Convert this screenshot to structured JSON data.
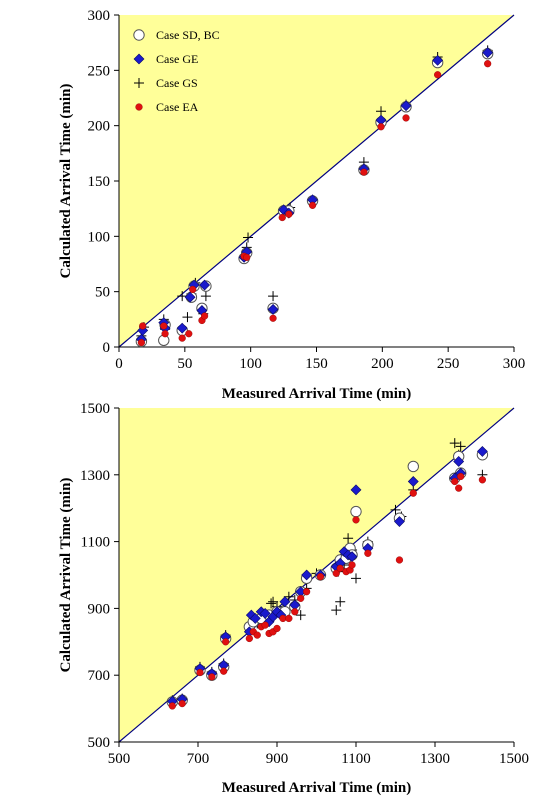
{
  "colors": {
    "plot_background": "#ffffff",
    "upper_triangle_fill": "#ffff99",
    "diagonal_line": "#000080",
    "sd_bc_marker": "#ffffff",
    "ge_marker": "#1a1acc",
    "gs_marker": "#000000",
    "ea_marker": "#e01010"
  },
  "chart_data": [
    {
      "type": "scatter",
      "xlabel": "Measured Arrival Time (min)",
      "ylabel": "Calculated Arrival Time (min)",
      "xlim": [
        0,
        300
      ],
      "ylim": [
        0,
        300
      ],
      "xticks": [
        0,
        50,
        100,
        150,
        200,
        250,
        300
      ],
      "yticks": [
        0,
        50,
        100,
        150,
        200,
        250,
        300
      ],
      "xtick_labels": [
        "0",
        "50",
        "100",
        "150",
        "200",
        "250",
        "300"
      ],
      "ytick_labels": [
        "0",
        "50",
        "100",
        "150",
        "200",
        "250",
        "300"
      ],
      "grid": false,
      "legend_position": "top-left",
      "series": [
        {
          "name": "Case SD, BC",
          "marker": "circle-open",
          "x": [
            17,
            34,
            35,
            48,
            55,
            57,
            63,
            66,
            95,
            97,
            117,
            125,
            129,
            147,
            186,
            199,
            218,
            242,
            280
          ],
          "y": [
            5,
            6,
            20,
            15,
            45,
            55,
            35,
            55,
            80,
            85,
            35,
            123,
            123,
            132,
            160,
            203,
            217,
            257,
            265
          ]
        },
        {
          "name": "Case GE",
          "marker": "diamond",
          "x": [
            17,
            18,
            34,
            35,
            48,
            54,
            57,
            63,
            65,
            95,
            97,
            117,
            125,
            129,
            147,
            186,
            199,
            218,
            242,
            280
          ],
          "y": [
            7,
            15,
            22,
            17,
            17,
            45,
            56,
            33,
            56,
            81,
            86,
            34,
            124,
            121,
            133,
            161,
            205,
            218,
            259,
            266
          ]
        },
        {
          "name": "Case GS",
          "marker": "plus",
          "x": [
            17,
            19,
            34,
            35,
            48,
            52,
            55,
            58,
            64,
            66,
            97,
            98,
            117,
            128,
            130,
            147,
            186,
            199,
            218,
            242,
            280
          ],
          "y": [
            10,
            18,
            25,
            16,
            46,
            27,
            48,
            58,
            30,
            46,
            90,
            99,
            46,
            124,
            126,
            133,
            167,
            213,
            219,
            262,
            268
          ]
        },
        {
          "name": "Case EA",
          "marker": "circle-filled",
          "x": [
            17,
            18,
            34,
            35,
            48,
            53,
            56,
            63,
            65,
            95,
            97,
            117,
            124,
            129,
            147,
            186,
            199,
            218,
            242,
            280
          ],
          "y": [
            4,
            19,
            19,
            12,
            8,
            12,
            52,
            24,
            28,
            82,
            81,
            26,
            117,
            120,
            128,
            158,
            199,
            207,
            246,
            256
          ]
        }
      ]
    },
    {
      "type": "scatter",
      "xlabel": "Measured Arrival Time (min)",
      "ylabel": "Calculated Arrival Time (min)",
      "xlim": [
        500,
        1500
      ],
      "ylim": [
        500,
        1500
      ],
      "xticks": [
        500,
        700,
        900,
        1100,
        1300,
        1500
      ],
      "yticks": [
        500,
        700,
        900,
        1100,
        1300,
        1500
      ],
      "xtick_labels": [
        "500",
        "700",
        "900",
        "1100",
        "1300",
        "1500"
      ],
      "ytick_labels": [
        "500",
        "700",
        "900",
        "1100",
        "1300",
        "1500"
      ],
      "grid": false,
      "legend_position": "none",
      "series": [
        {
          "name": "Case SD, BC",
          "marker": "circle-open",
          "x": [
            635,
            660,
            705,
            735,
            765,
            770,
            830,
            840,
            860,
            880,
            900,
            920,
            945,
            960,
            975,
            1010,
            1050,
            1060,
            1075,
            1085,
            1090,
            1100,
            1130,
            1210,
            1245,
            1350,
            1360,
            1365,
            1420
          ],
          "y": [
            620,
            625,
            715,
            700,
            725,
            810,
            845,
            860,
            870,
            880,
            890,
            890,
            905,
            950,
            990,
            1000,
            1020,
            1045,
            1050,
            1080,
            1060,
            1190,
            1090,
            1170,
            1325,
            1290,
            1355,
            1305,
            1360
          ]
        },
        {
          "name": "Case GE",
          "marker": "diamond",
          "x": [
            635,
            660,
            705,
            735,
            765,
            770,
            830,
            835,
            845,
            860,
            870,
            880,
            890,
            900,
            910,
            920,
            945,
            960,
            975,
            1010,
            1050,
            1060,
            1070,
            1080,
            1090,
            1100,
            1130,
            1210,
            1245,
            1350,
            1360,
            1365,
            1420
          ],
          "y": [
            622,
            628,
            720,
            705,
            730,
            815,
            830,
            880,
            870,
            890,
            885,
            860,
            875,
            890,
            880,
            920,
            910,
            950,
            1000,
            1000,
            1025,
            1035,
            1070,
            1060,
            1055,
            1255,
            1080,
            1160,
            1280,
            1290,
            1340,
            1305,
            1370
          ]
        },
        {
          "name": "Case GS",
          "marker": "plus",
          "x": [
            635,
            660,
            705,
            735,
            765,
            770,
            830,
            850,
            870,
            885,
            890,
            900,
            915,
            930,
            945,
            960,
            975,
            1000,
            1050,
            1055,
            1060,
            1070,
            1080,
            1090,
            1100,
            1130,
            1200,
            1215,
            1245,
            1350,
            1355,
            1360,
            1365,
            1420
          ],
          "y": [
            625,
            630,
            725,
            710,
            735,
            820,
            850,
            855,
            880,
            915,
            920,
            905,
            900,
            935,
            925,
            880,
            960,
            1005,
            895,
            1010,
            920,
            1030,
            1110,
            1075,
            990,
            1100,
            1195,
            1175,
            1255,
            1395,
            1290,
            1360,
            1385,
            1300
          ]
        },
        {
          "name": "Case EA",
          "marker": "circle-filled",
          "x": [
            635,
            660,
            705,
            735,
            765,
            770,
            830,
            840,
            850,
            860,
            870,
            880,
            890,
            900,
            915,
            930,
            945,
            960,
            975,
            1010,
            1050,
            1060,
            1075,
            1085,
            1090,
            1100,
            1130,
            1210,
            1245,
            1350,
            1360,
            1365,
            1420
          ],
          "y": [
            608,
            615,
            708,
            695,
            712,
            800,
            810,
            830,
            820,
            845,
            850,
            825,
            830,
            840,
            870,
            870,
            890,
            930,
            950,
            995,
            1005,
            1020,
            1010,
            1015,
            1030,
            1165,
            1065,
            1045,
            1245,
            1280,
            1260,
            1295,
            1285
          ]
        }
      ]
    }
  ]
}
